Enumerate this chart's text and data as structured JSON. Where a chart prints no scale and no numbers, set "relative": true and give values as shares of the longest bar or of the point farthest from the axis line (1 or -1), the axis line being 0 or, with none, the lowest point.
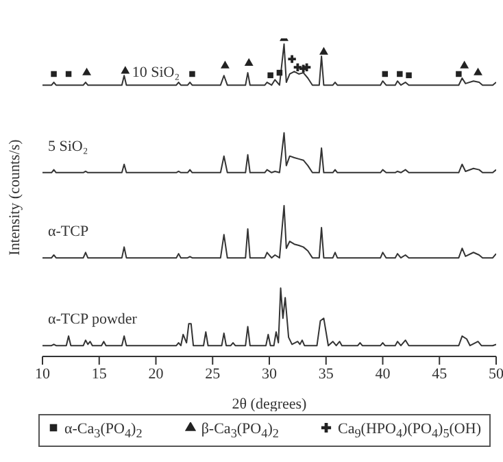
{
  "chart_data": {
    "type": "line",
    "relative": true,
    "xlabel": "2θ (degrees)",
    "ylabel": "Intensity (counts/s)",
    "xlim": [
      10,
      50
    ],
    "xticks": [
      10,
      15,
      20,
      25,
      30,
      35,
      40,
      45,
      50
    ],
    "legend": "bottom",
    "grid": false,
    "marker": "none",
    "line_style": "solid",
    "series": [
      {
        "name": "10 SiO₂",
        "color": "#333333",
        "x": [
          10,
          10.8,
          11,
          11.2,
          13.6,
          13.8,
          14,
          17,
          17.2,
          17.4,
          21.8,
          22,
          22.2,
          22.8,
          23,
          23.2,
          25.7,
          26,
          26.3,
          27.9,
          28.1,
          28.3,
          29.6,
          29.8,
          30.2,
          30.5,
          30.9,
          31.3,
          31.5,
          31.8,
          32.2,
          32.6,
          33,
          33.4,
          33.8,
          34.4,
          34.6,
          34.8,
          35.6,
          35.8,
          36,
          39.8,
          40,
          40.3,
          41.1,
          41.3,
          41.6,
          42,
          42.3,
          46.7,
          47,
          47.3,
          48,
          48.5,
          48.8,
          49.7,
          50
        ],
        "values": [
          0.853,
          0.853,
          0.862,
          0.853,
          0.853,
          0.862,
          0.853,
          0.853,
          0.883,
          0.853,
          0.853,
          0.862,
          0.853,
          0.853,
          0.862,
          0.853,
          0.853,
          0.883,
          0.853,
          0.853,
          0.892,
          0.853,
          0.853,
          0.862,
          0.853,
          0.87,
          0.853,
          0.982,
          0.862,
          0.888,
          0.896,
          0.888,
          0.892,
          0.875,
          0.853,
          0.853,
          0.944,
          0.853,
          0.853,
          0.862,
          0.853,
          0.853,
          0.866,
          0.853,
          0.853,
          0.866,
          0.853,
          0.862,
          0.853,
          0.853,
          0.875,
          0.858,
          0.866,
          0.862,
          0.853,
          0.853,
          0.862
        ]
      },
      {
        "name": "5 SiO₂",
        "color": "#333333",
        "x": [
          10,
          10.8,
          11,
          11.2,
          13.6,
          13.8,
          14,
          17,
          17.2,
          17.4,
          21.8,
          22,
          22.2,
          22.8,
          23,
          23.2,
          25.7,
          26,
          26.3,
          27.9,
          28.1,
          28.3,
          29.6,
          29.8,
          30.2,
          30.5,
          30.9,
          31.3,
          31.5,
          31.8,
          32.2,
          32.6,
          33,
          33.4,
          33.8,
          34.4,
          34.6,
          34.8,
          35.6,
          35.8,
          36,
          39.8,
          40,
          40.3,
          41.1,
          41.3,
          41.6,
          42,
          42.3,
          46.7,
          47,
          47.3,
          48,
          48.5,
          48.8,
          49.7,
          50
        ],
        "values": [
          0.578,
          0.578,
          0.587,
          0.578,
          0.578,
          0.582,
          0.578,
          0.578,
          0.604,
          0.578,
          0.578,
          0.582,
          0.578,
          0.578,
          0.587,
          0.578,
          0.578,
          0.63,
          0.578,
          0.578,
          0.634,
          0.578,
          0.578,
          0.587,
          0.578,
          0.582,
          0.578,
          0.703,
          0.6,
          0.63,
          0.625,
          0.621,
          0.617,
          0.6,
          0.578,
          0.578,
          0.655,
          0.578,
          0.578,
          0.587,
          0.578,
          0.578,
          0.587,
          0.578,
          0.578,
          0.582,
          0.578,
          0.587,
          0.578,
          0.578,
          0.604,
          0.582,
          0.591,
          0.587,
          0.578,
          0.578,
          0.587
        ]
      },
      {
        "name": "α-TCP",
        "color": "#333333",
        "x": [
          10,
          10.8,
          11,
          11.2,
          13.6,
          13.8,
          14,
          17,
          17.2,
          17.4,
          21.8,
          22,
          22.2,
          22.8,
          23,
          23.2,
          25.7,
          26,
          26.3,
          27.9,
          28.1,
          28.3,
          29.6,
          29.8,
          30.2,
          30.5,
          30.9,
          31.3,
          31.5,
          31.8,
          32.2,
          32.6,
          33,
          33.4,
          33.8,
          34.4,
          34.6,
          34.8,
          35.6,
          35.8,
          36,
          39.8,
          40,
          40.3,
          41.1,
          41.3,
          41.6,
          42,
          42.3,
          46.7,
          47,
          47.3,
          48,
          48.5,
          48.8,
          49.7,
          50
        ],
        "values": [
          0.31,
          0.31,
          0.319,
          0.31,
          0.31,
          0.327,
          0.31,
          0.31,
          0.344,
          0.31,
          0.31,
          0.323,
          0.31,
          0.31,
          0.314,
          0.31,
          0.31,
          0.383,
          0.31,
          0.31,
          0.401,
          0.31,
          0.31,
          0.327,
          0.31,
          0.319,
          0.31,
          0.474,
          0.34,
          0.362,
          0.353,
          0.349,
          0.344,
          0.332,
          0.31,
          0.31,
          0.405,
          0.31,
          0.31,
          0.327,
          0.31,
          0.31,
          0.327,
          0.31,
          0.31,
          0.323,
          0.31,
          0.319,
          0.31,
          0.31,
          0.34,
          0.315,
          0.327,
          0.319,
          0.31,
          0.31,
          0.323
        ]
      },
      {
        "name": "α-TCP powder",
        "color": "#333333",
        "x": [
          10,
          10.8,
          11,
          11.2,
          12.1,
          12.3,
          12.5,
          13.6,
          13.8,
          14,
          14.2,
          14.4,
          15.2,
          15.4,
          15.6,
          17,
          17.2,
          17.4,
          21.8,
          22,
          22.2,
          22.4,
          22.7,
          22.9,
          23.1,
          23.3,
          24.2,
          24.4,
          24.6,
          25.8,
          26,
          26.2,
          26.6,
          26.8,
          27,
          27.9,
          28.1,
          28.3,
          29.7,
          29.9,
          30.1,
          30.4,
          30.6,
          30.8,
          31,
          31.2,
          31.4,
          31.7,
          32,
          32.5,
          32.7,
          32.9,
          33.1,
          34.2,
          34.5,
          34.8,
          35,
          35.2,
          35.6,
          35.9,
          36.2,
          36.4,
          37.8,
          38,
          38.2,
          39.8,
          40,
          40.2,
          41.1,
          41.3,
          41.6,
          42,
          42.3,
          46.7,
          47,
          47.4,
          47.7,
          48.4,
          48.7,
          49.7,
          50
        ],
        "values": [
          0.034,
          0.034,
          0.038,
          0.034,
          0.034,
          0.064,
          0.034,
          0.034,
          0.051,
          0.038,
          0.047,
          0.034,
          0.034,
          0.047,
          0.034,
          0.034,
          0.064,
          0.034,
          0.034,
          0.043,
          0.034,
          0.069,
          0.043,
          0.103,
          0.103,
          0.034,
          0.034,
          0.077,
          0.034,
          0.034,
          0.073,
          0.034,
          0.034,
          0.043,
          0.034,
          0.034,
          0.094,
          0.034,
          0.034,
          0.069,
          0.034,
          0.034,
          0.077,
          0.043,
          0.215,
          0.12,
          0.185,
          0.06,
          0.038,
          0.047,
          0.038,
          0.051,
          0.034,
          0.034,
          0.112,
          0.12,
          0.077,
          0.034,
          0.047,
          0.034,
          0.047,
          0.034,
          0.034,
          0.043,
          0.034,
          0.034,
          0.043,
          0.034,
          0.034,
          0.047,
          0.034,
          0.051,
          0.034,
          0.034,
          0.064,
          0.055,
          0.034,
          0.047,
          0.034,
          0.034,
          0.038
        ]
      },
      {
        "name": "α-Ca$_{3}$(PO$_{4}$)$_{2}$",
        "type": "scatter",
        "marker": "square",
        "color": "#222222",
        "x": [
          11.0,
          12.3,
          23.2,
          30.1,
          30.9,
          40.2,
          41.5,
          42.3,
          46.7
        ],
        "values": [
          0.888,
          0.888,
          0.888,
          0.884,
          0.892,
          0.888,
          0.888,
          0.884,
          0.888
        ]
      },
      {
        "name": "β-Ca$_{3}$(PO$_{4}$)$_{2}$",
        "type": "scatter",
        "marker": "triangle",
        "color": "#222222",
        "x": [
          13.9,
          17.3,
          26.1,
          28.2,
          31.3,
          34.8,
          47.2,
          48.4
        ],
        "values": [
          0.892,
          0.897,
          0.914,
          0.922,
          1.0,
          0.957,
          0.914,
          0.892
        ]
      },
      {
        "name": "Ca$_{9}$(HPO$_{4}$)(PO$_{4}$)$_{5}$(OH)",
        "type": "scatter",
        "marker": "cross",
        "color": "#222222",
        "x": [
          32.0,
          32.5,
          33.0,
          33.3
        ],
        "values": [
          0.935,
          0.909,
          0.905,
          0.909
        ]
      }
    ]
  }
}
